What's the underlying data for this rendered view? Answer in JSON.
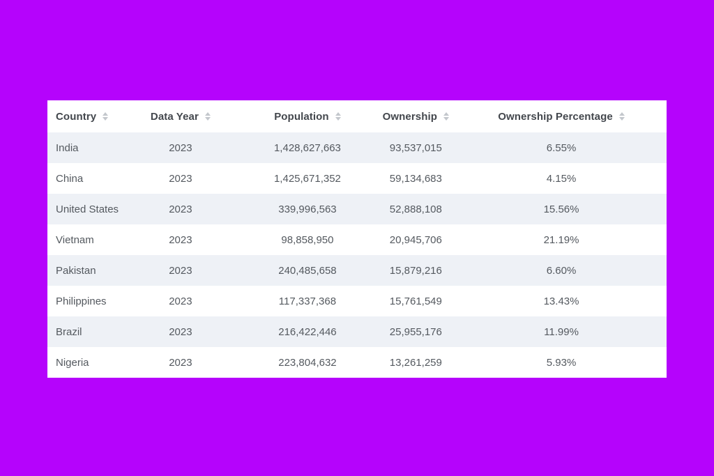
{
  "page": {
    "background_color": "#b503fc"
  },
  "table": {
    "header": {
      "columns": [
        {
          "id": "country",
          "label": "Country",
          "align": "left",
          "sort_icon": "sort-asc-desc-icon"
        },
        {
          "id": "data-year",
          "label": "Data Year",
          "align": "center",
          "sort_icon": "sort-asc-desc-icon"
        },
        {
          "id": "population",
          "label": "Population",
          "align": "center",
          "sort_icon": "sort-asc-desc-icon"
        },
        {
          "id": "ownership",
          "label": "Ownership",
          "align": "center",
          "sort_icon": "sort-asc-desc-icon"
        },
        {
          "id": "ownership-percentage",
          "label": "Ownership Percentage",
          "align": "center",
          "sort_icon": "sort-asc-desc-icon"
        }
      ]
    },
    "rows": [
      [
        "India",
        "2023",
        "1,428,627,663",
        "93,537,015",
        "6.55%"
      ],
      [
        "China",
        "2023",
        "1,425,671,352",
        "59,134,683",
        "4.15%"
      ],
      [
        "United States",
        "2023",
        "339,996,563",
        "52,888,108",
        "15.56%"
      ],
      [
        "Vietnam",
        "2023",
        "98,858,950",
        "20,945,706",
        "21.19%"
      ],
      [
        "Pakistan",
        "2023",
        "240,485,658",
        "15,879,216",
        "6.60%"
      ],
      [
        "Philippines",
        "2023",
        "117,337,368",
        "15,761,549",
        "13.43%"
      ],
      [
        "Brazil",
        "2023",
        "216,422,446",
        "25,955,176",
        "11.99%"
      ],
      [
        "Nigeria",
        "2023",
        "223,804,632",
        "13,261,259",
        "5.93%"
      ]
    ],
    "style": {
      "stripe_color": "#eef1f6",
      "row_color": "#ffffff",
      "header_text_color": "#43474d",
      "body_text_color": "#54595f",
      "sort_icon_color": "#c3c7cc"
    }
  },
  "chart_data": {
    "type": "table",
    "columns": [
      "Country",
      "Data Year",
      "Population",
      "Ownership",
      "Ownership Percentage"
    ],
    "rows": [
      [
        "India",
        "2023",
        "1,428,627,663",
        "93,537,015",
        "6.55%"
      ],
      [
        "China",
        "2023",
        "1,425,671,352",
        "59,134,683",
        "4.15%"
      ],
      [
        "United States",
        "2023",
        "339,996,563",
        "52,888,108",
        "15.56%"
      ],
      [
        "Vietnam",
        "2023",
        "98,858,950",
        "20,945,706",
        "21.19%"
      ],
      [
        "Pakistan",
        "2023",
        "240,485,658",
        "15,879,216",
        "6.60%"
      ],
      [
        "Philippines",
        "2023",
        "117,337,368",
        "15,761,549",
        "13.43%"
      ],
      [
        "Brazil",
        "2023",
        "216,422,446",
        "25,955,176",
        "11.99%"
      ],
      [
        "Nigeria",
        "2023",
        "223,804,632",
        "13,261,259",
        "5.93%"
      ]
    ]
  }
}
